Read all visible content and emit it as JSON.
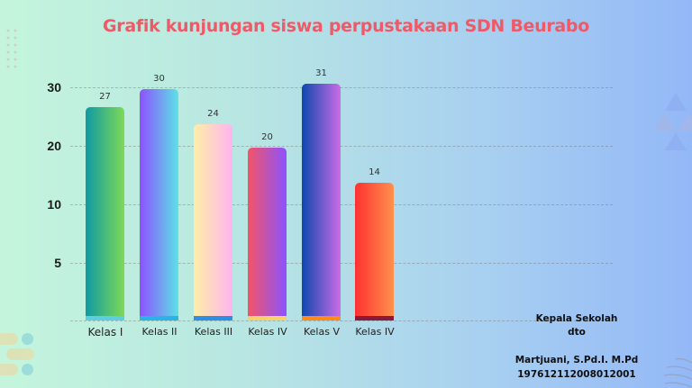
{
  "title": "Grafik kunjungan siswa perpustakaan SDN Beurabo",
  "y_axis": {
    "ticks": [
      "30",
      "20",
      "10",
      "5"
    ]
  },
  "bars": [
    {
      "label": "Kelas I",
      "value": "27",
      "grad_from": "#0f9aa3",
      "grad_to": "#7ed957",
      "strip": "#5fcde0"
    },
    {
      "label": "Kelas II",
      "value": "30",
      "grad_from": "#8c52ff",
      "grad_to": "#5ce1e6",
      "strip": "#2bb3e8"
    },
    {
      "label": "Kelas III",
      "value": "24",
      "grad_from": "#ffeea6",
      "grad_to": "#ffb4f0",
      "strip": "#2f8ee6"
    },
    {
      "label": "Kelas IV",
      "value": "20",
      "grad_from": "#f25568",
      "grad_to": "#8c52ff",
      "strip": "#f5d26a"
    },
    {
      "label": "Kelas V",
      "value": "31",
      "grad_from": "#0e47b0",
      "grad_to": "#cb6ce6",
      "strip": "#ff8c1a"
    },
    {
      "label": "Kelas IV",
      "value": "14",
      "grad_from": "#ff3131",
      "grad_to": "#ff914d",
      "strip": "#8b1a3a"
    }
  ],
  "signature": {
    "role": "Kepala Sekolah",
    "status": "dto",
    "name": "Martjuani, S.Pd.I. M.Pd",
    "nip": "197612112008012001"
  },
  "chart_data": {
    "type": "bar",
    "title": "Grafik kunjungan siswa perpustakaan SDN Beurabo",
    "categories": [
      "Kelas I",
      "Kelas II",
      "Kelas III",
      "Kelas IV",
      "Kelas V",
      "Kelas IV"
    ],
    "values": [
      27,
      30,
      24,
      20,
      31,
      14
    ],
    "xlabel": "",
    "ylabel": "",
    "y_tick_labels": [
      "5",
      "10",
      "20",
      "30"
    ],
    "grid": true,
    "legend": "none"
  }
}
